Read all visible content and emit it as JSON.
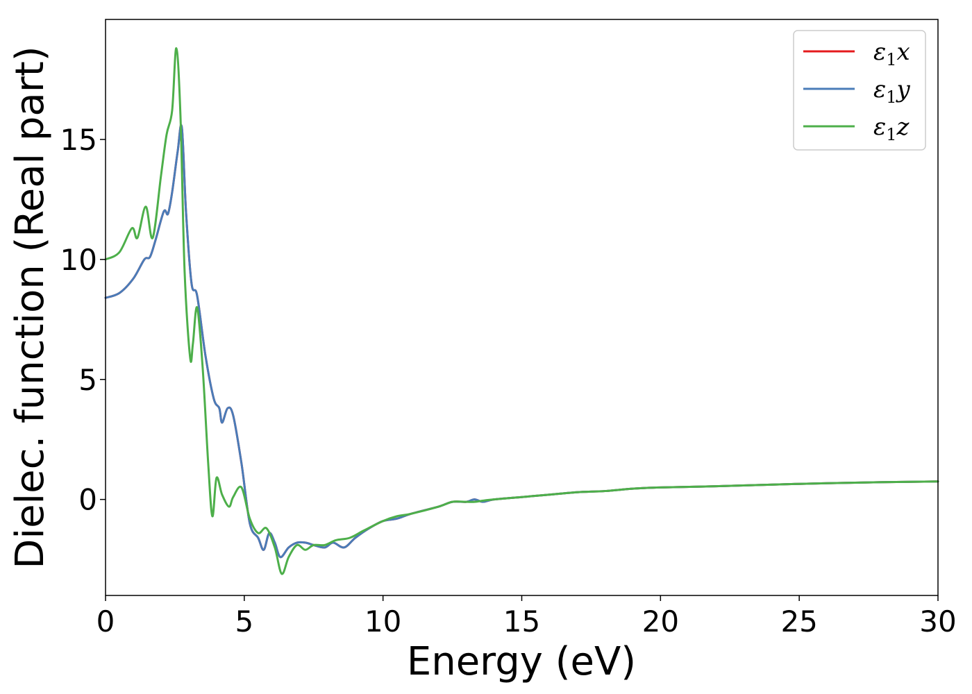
{
  "chart_data": {
    "type": "line",
    "title": "",
    "xlabel": "Energy (eV)",
    "ylabel": "Dielec. function (Real part)",
    "xlim": [
      0,
      30
    ],
    "ylim": [
      -4,
      20
    ],
    "xticks": [
      0,
      5,
      10,
      15,
      20,
      25,
      30
    ],
    "xtick_labels": [
      "0",
      "5",
      "10",
      "15",
      "20",
      "25",
      "30"
    ],
    "yticks": [
      0,
      5,
      10,
      15
    ],
    "ytick_labels": [
      "0",
      "5",
      "10",
      "15"
    ],
    "grid": false,
    "legend_position": "top-right",
    "series": [
      {
        "name_main": "ε",
        "name_sub": "1",
        "name_tail": "x",
        "color": "#e41a1c",
        "x": [
          0,
          0.5,
          1.0,
          1.4,
          1.6,
          1.8,
          2.1,
          2.25,
          2.4,
          2.6,
          2.75,
          2.9,
          3.1,
          3.3,
          3.6,
          3.9,
          4.1,
          4.2,
          4.4,
          4.6,
          4.9,
          5.2,
          5.5,
          5.7,
          5.9,
          6.1,
          6.3,
          6.6,
          6.9,
          7.2,
          7.5,
          7.9,
          8.2,
          8.6,
          9.0,
          9.5,
          10.0,
          10.5,
          11.0,
          12.0,
          12.5,
          13.0,
          13.3,
          13.6,
          14.0,
          15.0,
          16.0,
          17.0,
          18.0,
          19.0,
          20.0,
          22.0,
          25.0,
          28.0,
          30.0
        ],
        "y": [
          8.4,
          8.6,
          9.2,
          10.0,
          10.1,
          10.8,
          12.0,
          11.9,
          12.8,
          14.5,
          15.5,
          12.0,
          9.0,
          8.5,
          6.0,
          4.2,
          3.8,
          3.2,
          3.8,
          3.5,
          1.5,
          -1.0,
          -1.6,
          -2.1,
          -1.4,
          -1.8,
          -2.4,
          -2.0,
          -1.8,
          -1.8,
          -1.9,
          -2.0,
          -1.8,
          -2.0,
          -1.6,
          -1.2,
          -0.9,
          -0.8,
          -0.6,
          -0.3,
          -0.1,
          -0.1,
          0.0,
          -0.1,
          0.0,
          0.1,
          0.2,
          0.3,
          0.35,
          0.45,
          0.5,
          0.55,
          0.65,
          0.72,
          0.75
        ]
      },
      {
        "name_main": "ε",
        "name_sub": "1",
        "name_tail": "y",
        "color": "#4a7cb8",
        "x": [
          0,
          0.5,
          1.0,
          1.4,
          1.6,
          1.8,
          2.1,
          2.25,
          2.4,
          2.6,
          2.75,
          2.9,
          3.1,
          3.3,
          3.6,
          3.9,
          4.1,
          4.2,
          4.4,
          4.6,
          4.9,
          5.2,
          5.5,
          5.7,
          5.9,
          6.1,
          6.3,
          6.6,
          6.9,
          7.2,
          7.5,
          7.9,
          8.2,
          8.6,
          9.0,
          9.5,
          10.0,
          10.5,
          11.0,
          12.0,
          12.5,
          13.0,
          13.3,
          13.6,
          14.0,
          15.0,
          16.0,
          17.0,
          18.0,
          19.0,
          20.0,
          22.0,
          25.0,
          28.0,
          30.0
        ],
        "y": [
          8.4,
          8.6,
          9.2,
          10.0,
          10.1,
          10.8,
          12.0,
          11.9,
          12.8,
          14.5,
          15.5,
          12.0,
          9.0,
          8.5,
          6.0,
          4.2,
          3.8,
          3.2,
          3.8,
          3.5,
          1.5,
          -1.0,
          -1.6,
          -2.1,
          -1.4,
          -1.8,
          -2.4,
          -2.0,
          -1.8,
          -1.8,
          -1.9,
          -2.0,
          -1.8,
          -2.0,
          -1.6,
          -1.2,
          -0.9,
          -0.8,
          -0.6,
          -0.3,
          -0.1,
          -0.1,
          0.0,
          -0.1,
          0.0,
          0.1,
          0.2,
          0.3,
          0.35,
          0.45,
          0.5,
          0.55,
          0.65,
          0.72,
          0.75
        ]
      },
      {
        "name_main": "ε",
        "name_sub": "1",
        "name_tail": "z",
        "color": "#4daf4a",
        "x": [
          0,
          0.5,
          0.95,
          1.15,
          1.45,
          1.7,
          2.0,
          2.2,
          2.4,
          2.55,
          2.7,
          2.85,
          3.05,
          3.15,
          3.3,
          3.5,
          3.7,
          3.85,
          4.0,
          4.2,
          4.45,
          4.6,
          4.9,
          5.2,
          5.5,
          5.8,
          6.1,
          6.35,
          6.6,
          6.9,
          7.2,
          7.5,
          7.9,
          8.3,
          8.8,
          9.3,
          10.0,
          10.5,
          11.0,
          12.0,
          12.5,
          13.0,
          13.3,
          13.6,
          14.0,
          15.0,
          16.0,
          17.0,
          18.0,
          19.0,
          20.0,
          22.0,
          25.0,
          28.0,
          30.0
        ],
        "y": [
          10.0,
          10.3,
          11.3,
          10.9,
          12.2,
          10.9,
          13.5,
          15.2,
          16.2,
          18.8,
          16.0,
          9.5,
          5.9,
          6.5,
          8.0,
          5.5,
          1.5,
          -0.7,
          0.9,
          0.2,
          -0.3,
          0.1,
          0.5,
          -0.8,
          -1.4,
          -1.2,
          -2.0,
          -3.1,
          -2.4,
          -1.9,
          -2.1,
          -1.9,
          -1.9,
          -1.7,
          -1.6,
          -1.3,
          -0.9,
          -0.7,
          -0.6,
          -0.3,
          -0.1,
          -0.1,
          -0.1,
          -0.05,
          0.0,
          0.1,
          0.2,
          0.3,
          0.35,
          0.45,
          0.5,
          0.55,
          0.65,
          0.72,
          0.75
        ]
      }
    ]
  }
}
